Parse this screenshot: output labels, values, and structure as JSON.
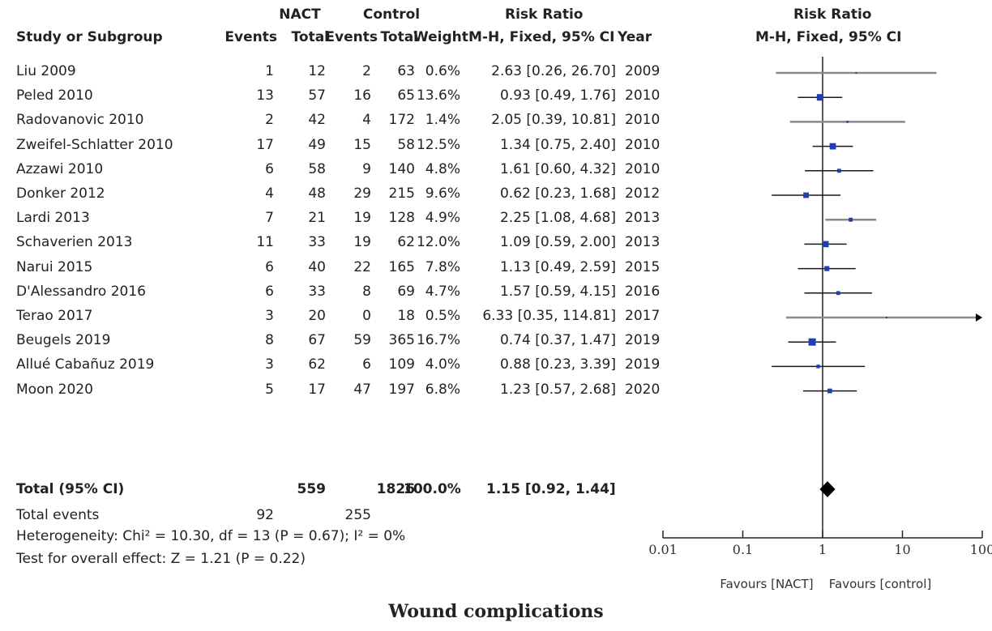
{
  "header": {
    "group1": "NACT",
    "group2": "Control",
    "rr_top": "Risk Ratio",
    "study_col": "Study or Subgroup",
    "events": "Events",
    "total": "Total",
    "weight": "Weight",
    "method": "M-H, Fixed, 95% CI",
    "year": "Year",
    "plot_top": "Risk Ratio",
    "plot_method": "M-H, Fixed, 95% CI"
  },
  "studies": [
    {
      "name": "Liu 2009",
      "e1": "1",
      "n1": "12",
      "e2": "2",
      "n2": "63",
      "weight": "0.6%",
      "ci_text": "2.63 [0.26, 26.70]",
      "year": "2009"
    },
    {
      "name": "Peled 2010",
      "e1": "13",
      "n1": "57",
      "e2": "16",
      "n2": "65",
      "weight": "13.6%",
      "ci_text": "0.93 [0.49, 1.76]",
      "year": "2010"
    },
    {
      "name": "Radovanovic 2010",
      "e1": "2",
      "n1": "42",
      "e2": "4",
      "n2": "172",
      "weight": "1.4%",
      "ci_text": "2.05 [0.39, 10.81]",
      "year": "2010"
    },
    {
      "name": "Zweifel-Schlatter 2010",
      "e1": "17",
      "n1": "49",
      "e2": "15",
      "n2": "58",
      "weight": "12.5%",
      "ci_text": "1.34 [0.75, 2.40]",
      "year": "2010"
    },
    {
      "name": "Azzawi 2010",
      "e1": "6",
      "n1": "58",
      "e2": "9",
      "n2": "140",
      "weight": "4.8%",
      "ci_text": "1.61 [0.60, 4.32]",
      "year": "2010"
    },
    {
      "name": "Donker 2012",
      "e1": "4",
      "n1": "48",
      "e2": "29",
      "n2": "215",
      "weight": "9.6%",
      "ci_text": "0.62 [0.23, 1.68]",
      "year": "2012"
    },
    {
      "name": "Lardi 2013",
      "e1": "7",
      "n1": "21",
      "e2": "19",
      "n2": "128",
      "weight": "4.9%",
      "ci_text": "2.25 [1.08, 4.68]",
      "year": "2013"
    },
    {
      "name": "Schaverien 2013",
      "e1": "11",
      "n1": "33",
      "e2": "19",
      "n2": "62",
      "weight": "12.0%",
      "ci_text": "1.09 [0.59, 2.00]",
      "year": "2013"
    },
    {
      "name": "Narui 2015",
      "e1": "6",
      "n1": "40",
      "e2": "22",
      "n2": "165",
      "weight": "7.8%",
      "ci_text": "1.13 [0.49, 2.59]",
      "year": "2015"
    },
    {
      "name": "D'Alessandro 2016",
      "e1": "6",
      "n1": "33",
      "e2": "8",
      "n2": "69",
      "weight": "4.7%",
      "ci_text": "1.57 [0.59, 4.15]",
      "year": "2016"
    },
    {
      "name": "Terao 2017",
      "e1": "3",
      "n1": "20",
      "e2": "0",
      "n2": "18",
      "weight": "0.5%",
      "ci_text": "6.33 [0.35, 114.81]",
      "year": "2017"
    },
    {
      "name": "Beugels 2019",
      "e1": "8",
      "n1": "67",
      "e2": "59",
      "n2": "365",
      "weight": "16.7%",
      "ci_text": "0.74 [0.37, 1.47]",
      "year": "2019"
    },
    {
      "name": "Allué Cabañuz 2019",
      "e1": "3",
      "n1": "62",
      "e2": "6",
      "n2": "109",
      "weight": "4.0%",
      "ci_text": "0.88 [0.23, 3.39]",
      "year": "2019"
    },
    {
      "name": "Moon 2020",
      "e1": "5",
      "n1": "17",
      "e2": "47",
      "n2": "197",
      "weight": "6.8%",
      "ci_text": "1.23 [0.57, 2.68]",
      "year": "2020"
    }
  ],
  "total": {
    "label": "Total (95% CI)",
    "n1": "559",
    "n2": "1826",
    "weight": "100.0%",
    "ci_text": "1.15 [0.92, 1.44]",
    "events_label": "Total events",
    "e1": "92",
    "e2": "255"
  },
  "heterogeneity": "Heterogeneity: Chi² = 10.30, df = 13 (P = 0.67); I² = 0%",
  "overall_effect": "Test for overall effect: Z = 1.21 (P = 0.22)",
  "axis": {
    "ticks": [
      "0.01",
      "0.1",
      "1",
      "10",
      "100"
    ],
    "favours_left": "Favours [NACT]",
    "favours_right": "Favours [control]"
  },
  "title": "Wound complications",
  "colors": {
    "point": "#1f3fb0",
    "ci_line": "#1a1a1a",
    "ci_line_light": "#8a8a8a",
    "diamond": "#000000"
  },
  "chart_data": {
    "type": "forest",
    "scale": "log",
    "xlim": [
      0.01,
      100
    ],
    "reference": 1,
    "series": [
      {
        "name": "Liu 2009",
        "rr": 2.63,
        "lo": 0.26,
        "hi": 26.7,
        "weight": 0.6
      },
      {
        "name": "Peled 2010",
        "rr": 0.93,
        "lo": 0.49,
        "hi": 1.76,
        "weight": 13.6
      },
      {
        "name": "Radovanovic 2010",
        "rr": 2.05,
        "lo": 0.39,
        "hi": 10.81,
        "weight": 1.4
      },
      {
        "name": "Zweifel-Schlatter 2010",
        "rr": 1.34,
        "lo": 0.75,
        "hi": 2.4,
        "weight": 12.5
      },
      {
        "name": "Azzawi 2010",
        "rr": 1.61,
        "lo": 0.6,
        "hi": 4.32,
        "weight": 4.8
      },
      {
        "name": "Donker 2012",
        "rr": 0.62,
        "lo": 0.23,
        "hi": 1.68,
        "weight": 9.6
      },
      {
        "name": "Lardi 2013",
        "rr": 2.25,
        "lo": 1.08,
        "hi": 4.68,
        "weight": 4.9
      },
      {
        "name": "Schaverien 2013",
        "rr": 1.09,
        "lo": 0.59,
        "hi": 2.0,
        "weight": 12.0
      },
      {
        "name": "Narui 2015",
        "rr": 1.13,
        "lo": 0.49,
        "hi": 2.59,
        "weight": 7.8
      },
      {
        "name": "D'Alessandro 2016",
        "rr": 1.57,
        "lo": 0.59,
        "hi": 4.15,
        "weight": 4.7
      },
      {
        "name": "Terao 2017",
        "rr": 6.33,
        "lo": 0.35,
        "hi": 114.81,
        "weight": 0.5
      },
      {
        "name": "Beugels 2019",
        "rr": 0.74,
        "lo": 0.37,
        "hi": 1.47,
        "weight": 16.7
      },
      {
        "name": "Allué Cabañuz 2019",
        "rr": 0.88,
        "lo": 0.23,
        "hi": 3.39,
        "weight": 4.0
      },
      {
        "name": "Moon 2020",
        "rr": 1.23,
        "lo": 0.57,
        "hi": 2.68,
        "weight": 6.8
      }
    ],
    "pooled": {
      "name": "Total (95% CI)",
      "rr": 1.15,
      "lo": 0.92,
      "hi": 1.44
    }
  }
}
